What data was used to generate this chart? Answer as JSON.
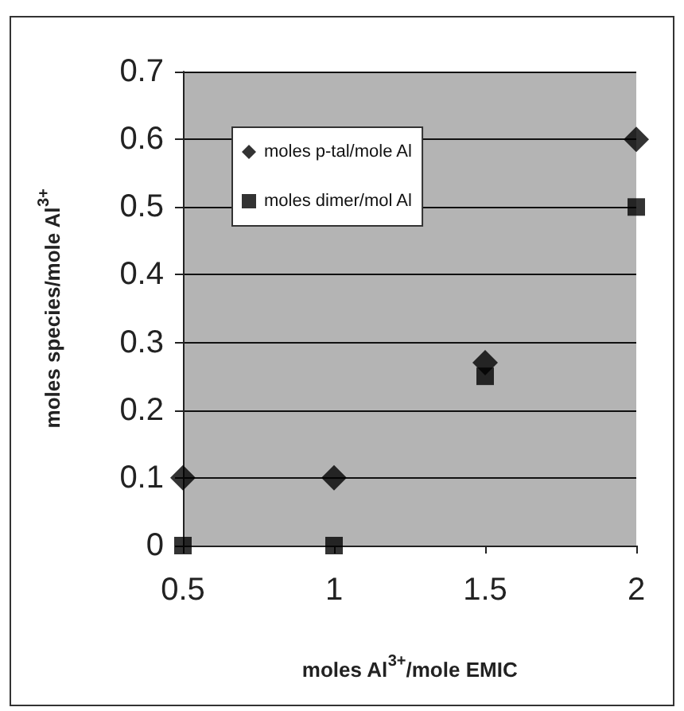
{
  "chart_data": {
    "type": "scatter",
    "xlabel": "moles Al$^{3+}$/mole EMIC",
    "ylabel": "moles species/mole Al$^{3+}$",
    "x": [
      0.5,
      1,
      1.5,
      2
    ],
    "series": [
      {
        "name": "moles p-tal/mole Al",
        "color": "#000000",
        "marker": "diamond",
        "values": [
          0.1,
          0.1,
          0.27,
          0.6
        ]
      },
      {
        "name": "moles dimer/mol Al",
        "color": "#000000",
        "marker": "square",
        "values": [
          0,
          0,
          0.25,
          0.5
        ]
      }
    ],
    "xlim": [
      0.5,
      2
    ],
    "xticks": [
      0.5,
      1,
      1.5,
      2
    ],
    "ylim": [
      0,
      0.7
    ],
    "yticks": [
      0,
      0.1,
      0.2,
      0.3,
      0.4,
      0.5,
      0.6,
      0.7
    ],
    "grid": "y",
    "legend": "top left"
  }
}
